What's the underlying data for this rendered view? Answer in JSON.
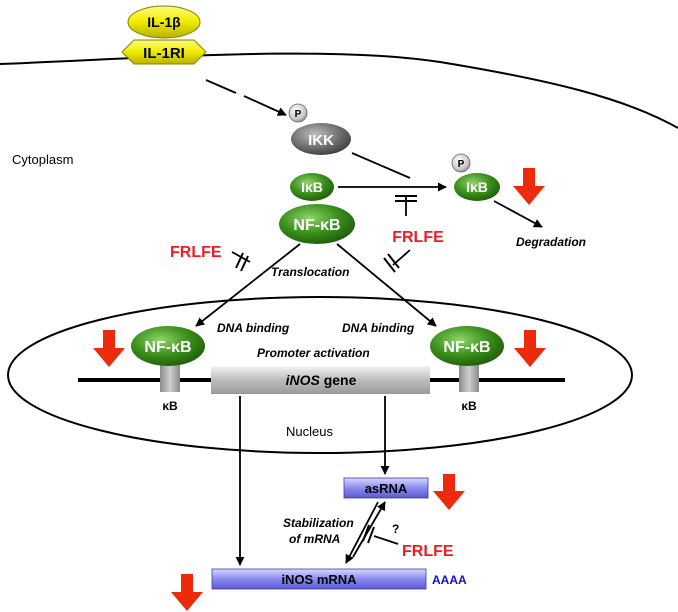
{
  "colors": {
    "ligand_yellow": "#f2f000",
    "receptor_yellow": "#e8e000",
    "ikk_gray": "#6e6e6e",
    "phospho_gray": "#c8c8c8",
    "protein_green": "#3a8f1a",
    "inhibitor_red": "#ee1c24",
    "down_arrow_red": "#ee2a0c",
    "rna_blue": "#6f6fe6",
    "polyA_blue": "#1010cc",
    "line_black": "#000000"
  },
  "icons": {
    "phospho": "p-circle-icon",
    "down_arrow": "red-down-arrow-icon",
    "inhibition": "inhibition-tbar-icon"
  },
  "labels": {
    "ligand": "IL-1β",
    "receptor": "IL-1RI",
    "phospho_p": "P",
    "ikk": "IKK",
    "cytoplasm": "Cytoplasm",
    "ikb": "IκB",
    "nfkb": "NF-κB",
    "frlfe": "FRLFE",
    "degradation": "Degradation",
    "translocation": "Translocation",
    "dna_binding": "DNA binding",
    "promoter_activation": "Promoter activation",
    "inos_gene_italic": "iNOS",
    "inos_gene_suffix": " gene",
    "kb_site": "κB",
    "nucleus": "Nucleus",
    "asrna": "asRNA",
    "stabilization_line1": "Stabilization",
    "stabilization_line2": "of mRNA",
    "question": "?",
    "inos_mrna": "iNOS mRNA",
    "polya": "AAAA"
  }
}
